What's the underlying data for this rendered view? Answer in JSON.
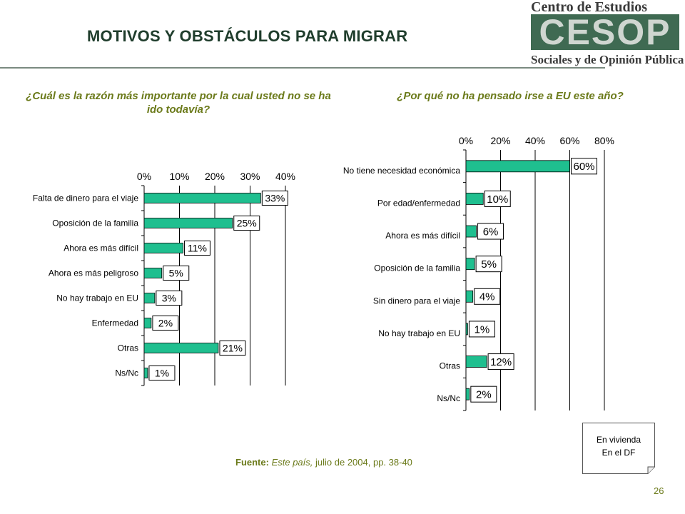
{
  "header": {
    "title": "MOTIVOS Y OBSTÁCULOS PARA MIGRAR",
    "logo": {
      "top": "Centro de Estudios",
      "mark": "CESOP",
      "bottom": "Sociales y de Opinión Pública"
    }
  },
  "chart_data": [
    {
      "type": "bar",
      "orientation": "horizontal",
      "title": "¿Cuál es la razón más importante por la cual usted no se ha ido todavía?",
      "categories": [
        "Falta de dinero para el viaje",
        "Oposición de la familia",
        "Ahora es más difícil",
        "Ahora es más peligroso",
        "No hay trabajo en EU",
        "Enfermedad",
        "Otras",
        "Ns/Nc"
      ],
      "values": [
        33,
        25,
        11,
        5,
        3,
        2,
        21,
        1
      ],
      "value_labels": [
        "33%",
        "25%",
        "11%",
        "5%",
        "3%",
        "2%",
        "21%",
        "1%"
      ],
      "xlim": [
        0,
        40
      ],
      "xticks": [
        "0%",
        "10%",
        "20%",
        "30%",
        "40%"
      ],
      "grid": true,
      "bar_color": "#1fbf8f"
    },
    {
      "type": "bar",
      "orientation": "horizontal",
      "title": "¿Por qué no ha pensado irse a EU este año?",
      "categories": [
        "No tiene necesidad económica",
        "Por edad/enfermedad",
        "Ahora es más difícil",
        "Oposición de la familia",
        "Sin dinero para el viaje",
        "No hay trabajo en EU",
        "Otras",
        "Ns/Nc"
      ],
      "values": [
        60,
        10,
        6,
        5,
        4,
        1,
        12,
        2
      ],
      "value_labels": [
        "60%",
        "10%",
        "6%",
        "5%",
        "4%",
        "1%",
        "12%",
        "2%"
      ],
      "xlim": [
        0,
        80
      ],
      "xticks": [
        "0%",
        "20%",
        "40%",
        "60%",
        "80%"
      ],
      "grid": true,
      "bar_color": "#1fbf8f"
    }
  ],
  "source": {
    "label": "Fuente:",
    "publication": "Este país,",
    "detail": "julio de 2004, pp. 38-40"
  },
  "note": {
    "line1": "En vivienda",
    "line2": "En el DF"
  },
  "page_number": "26"
}
